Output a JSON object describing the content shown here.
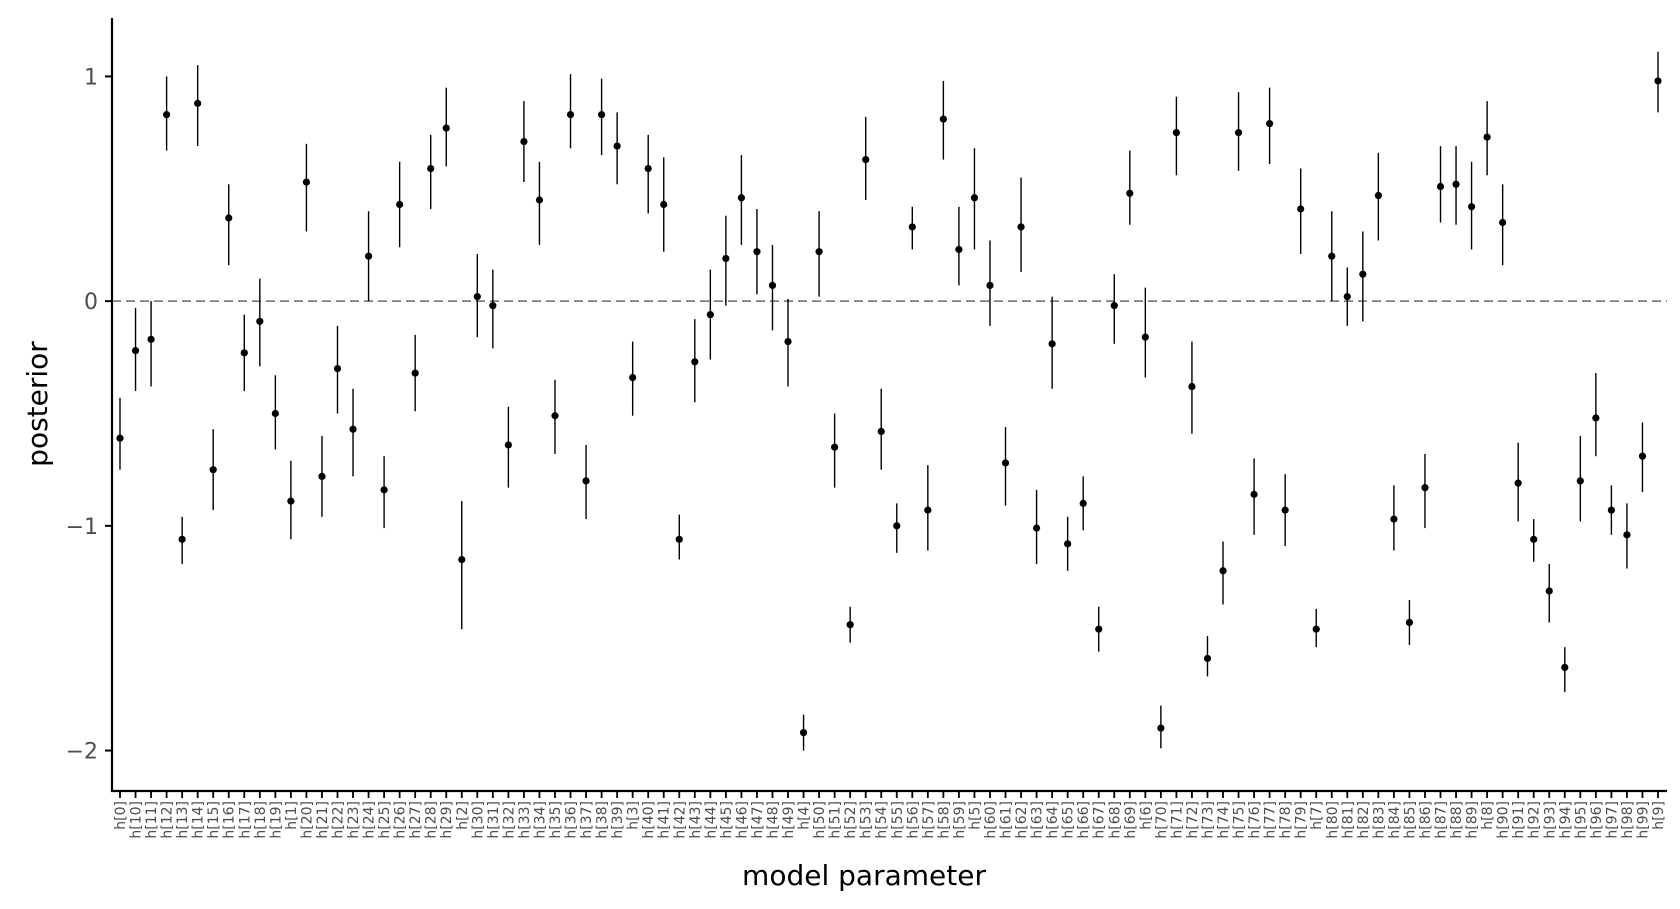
{
  "chart_data": {
    "type": "scatter",
    "xlabel": "model parameter",
    "ylabel": "posterior",
    "ylim": [
      -2.18,
      1.26
    ],
    "yticks": [
      1,
      0,
      -1,
      -2
    ],
    "yticklabels": [
      "1",
      "0",
      "−1",
      "−2"
    ],
    "reference_line": {
      "y": 0,
      "style": "dashed",
      "color": "#808080"
    },
    "grid": false,
    "colors": {
      "points": "#000000",
      "axes": "#000000",
      "reference": "#808080"
    },
    "categories": [
      "h[0]",
      "h[10]",
      "h[11]",
      "h[12]",
      "h[13]",
      "h[14]",
      "h[15]",
      "h[16]",
      "h[17]",
      "h[18]",
      "h[19]",
      "h[1]",
      "h[20]",
      "h[21]",
      "h[22]",
      "h[23]",
      "h[24]",
      "h[25]",
      "h[26]",
      "h[27]",
      "h[28]",
      "h[29]",
      "h[2]",
      "h[30]",
      "h[31]",
      "h[32]",
      "h[33]",
      "h[34]",
      "h[35]",
      "h[36]",
      "h[37]",
      "h[38]",
      "h[39]",
      "h[3]",
      "h[40]",
      "h[41]",
      "h[42]",
      "h[43]",
      "h[44]",
      "h[45]",
      "h[46]",
      "h[47]",
      "h[48]",
      "h[49]",
      "h[4]",
      "h[50]",
      "h[51]",
      "h[52]",
      "h[53]",
      "h[54]",
      "h[55]",
      "h[56]",
      "h[57]",
      "h[58]",
      "h[59]",
      "h[5]",
      "h[60]",
      "h[61]",
      "h[62]",
      "h[63]",
      "h[64]",
      "h[65]",
      "h[66]",
      "h[67]",
      "h[68]",
      "h[69]",
      "h[6]",
      "h[70]",
      "h[71]",
      "h[72]",
      "h[73]",
      "h[74]",
      "h[75]",
      "h[76]",
      "h[77]",
      "h[78]",
      "h[79]",
      "h[7]",
      "h[80]",
      "h[81]",
      "h[82]",
      "h[83]",
      "h[84]",
      "h[85]",
      "h[86]",
      "h[87]",
      "h[88]",
      "h[89]",
      "h[8]",
      "h[90]",
      "h[91]",
      "h[92]",
      "h[93]",
      "h[94]",
      "h[95]",
      "h[96]",
      "h[97]",
      "h[98]",
      "h[99]",
      "h[9]"
    ],
    "mean": [
      -0.61,
      -0.22,
      -0.17,
      0.83,
      -1.06,
      0.88,
      -0.75,
      0.37,
      -0.23,
      -0.09,
      -0.5,
      -0.89,
      0.53,
      -0.78,
      -0.3,
      -0.57,
      0.2,
      -0.84,
      0.43,
      -0.32,
      0.59,
      0.77,
      -1.15,
      0.02,
      -0.02,
      -0.64,
      0.71,
      0.45,
      -0.51,
      0.83,
      -0.8,
      0.83,
      0.69,
      -0.34,
      0.59,
      0.43,
      -1.06,
      -0.27,
      -0.06,
      0.19,
      0.46,
      0.22,
      0.07,
      -0.18,
      -1.92,
      0.22,
      -0.65,
      -1.44,
      0.63,
      -0.58,
      -1.0,
      0.33,
      -0.93,
      0.81,
      0.23,
      0.46,
      0.07,
      -0.72,
      0.33,
      -1.01,
      -0.19,
      -1.08,
      -0.9,
      -1.46,
      -0.02,
      0.48,
      -0.16,
      -1.9,
      0.75,
      -0.38,
      -1.59,
      -1.2,
      0.75,
      -0.86,
      0.79,
      -0.93,
      0.41,
      -1.46,
      0.2,
      0.02,
      0.12,
      0.47,
      -0.97,
      -1.43,
      -0.83,
      0.51,
      0.52,
      0.42,
      0.73,
      0.35,
      -0.81,
      -1.06,
      -1.29,
      -1.63,
      -0.8,
      -0.52,
      -0.93,
      -1.04,
      -0.69,
      0.98
    ],
    "lower": [
      -0.75,
      -0.4,
      -0.38,
      0.67,
      -1.17,
      0.69,
      -0.93,
      0.16,
      -0.4,
      -0.29,
      -0.66,
      -1.06,
      0.31,
      -0.96,
      -0.5,
      -0.78,
      0.0,
      -1.01,
      0.24,
      -0.49,
      0.41,
      0.6,
      -1.46,
      -0.16,
      -0.21,
      -0.83,
      0.53,
      0.25,
      -0.68,
      0.68,
      -0.97,
      0.65,
      0.52,
      -0.51,
      0.39,
      0.22,
      -1.15,
      -0.45,
      -0.26,
      -0.02,
      0.25,
      0.03,
      -0.13,
      -0.38,
      -2.0,
      0.02,
      -0.83,
      -1.52,
      0.45,
      -0.75,
      -1.12,
      0.23,
      -1.11,
      0.63,
      0.07,
      0.23,
      -0.11,
      -0.91,
      0.13,
      -1.17,
      -0.39,
      -1.2,
      -1.02,
      -1.56,
      -0.19,
      0.34,
      -0.34,
      -1.99,
      0.56,
      -0.59,
      -1.67,
      -1.35,
      0.58,
      -1.04,
      0.61,
      -1.09,
      0.21,
      -1.54,
      0.0,
      -0.11,
      -0.09,
      0.27,
      -1.11,
      -1.53,
      -1.01,
      0.35,
      0.34,
      0.23,
      0.56,
      0.16,
      -0.98,
      -1.16,
      -1.43,
      -1.74,
      -0.98,
      -0.69,
      -1.04,
      -1.19,
      -0.85,
      0.84
    ],
    "upper": [
      -0.43,
      -0.03,
      0.0,
      1.0,
      -0.96,
      1.05,
      -0.57,
      0.52,
      -0.06,
      0.1,
      -0.33,
      -0.71,
      0.7,
      -0.6,
      -0.11,
      -0.39,
      0.4,
      -0.69,
      0.62,
      -0.15,
      0.74,
      0.95,
      -0.89,
      0.21,
      0.14,
      -0.47,
      0.89,
      0.62,
      -0.35,
      1.01,
      -0.64,
      0.99,
      0.84,
      -0.18,
      0.74,
      0.64,
      -0.95,
      -0.08,
      0.14,
      0.38,
      0.65,
      0.41,
      0.25,
      0.01,
      -1.84,
      0.4,
      -0.5,
      -1.36,
      0.82,
      -0.39,
      -0.9,
      0.42,
      -0.73,
      0.98,
      0.42,
      0.68,
      0.27,
      -0.56,
      0.55,
      -0.84,
      0.02,
      -0.96,
      -0.78,
      -1.36,
      0.12,
      0.67,
      0.06,
      -1.8,
      0.91,
      -0.18,
      -1.49,
      -1.07,
      0.93,
      -0.7,
      0.95,
      -0.77,
      0.59,
      -1.37,
      0.4,
      0.15,
      0.31,
      0.66,
      -0.82,
      -1.33,
      -0.68,
      0.69,
      0.69,
      0.62,
      0.89,
      0.52,
      -0.63,
      -0.97,
      -1.17,
      -1.54,
      -0.6,
      -0.32,
      -0.82,
      -0.9,
      -0.54,
      1.11
    ]
  }
}
